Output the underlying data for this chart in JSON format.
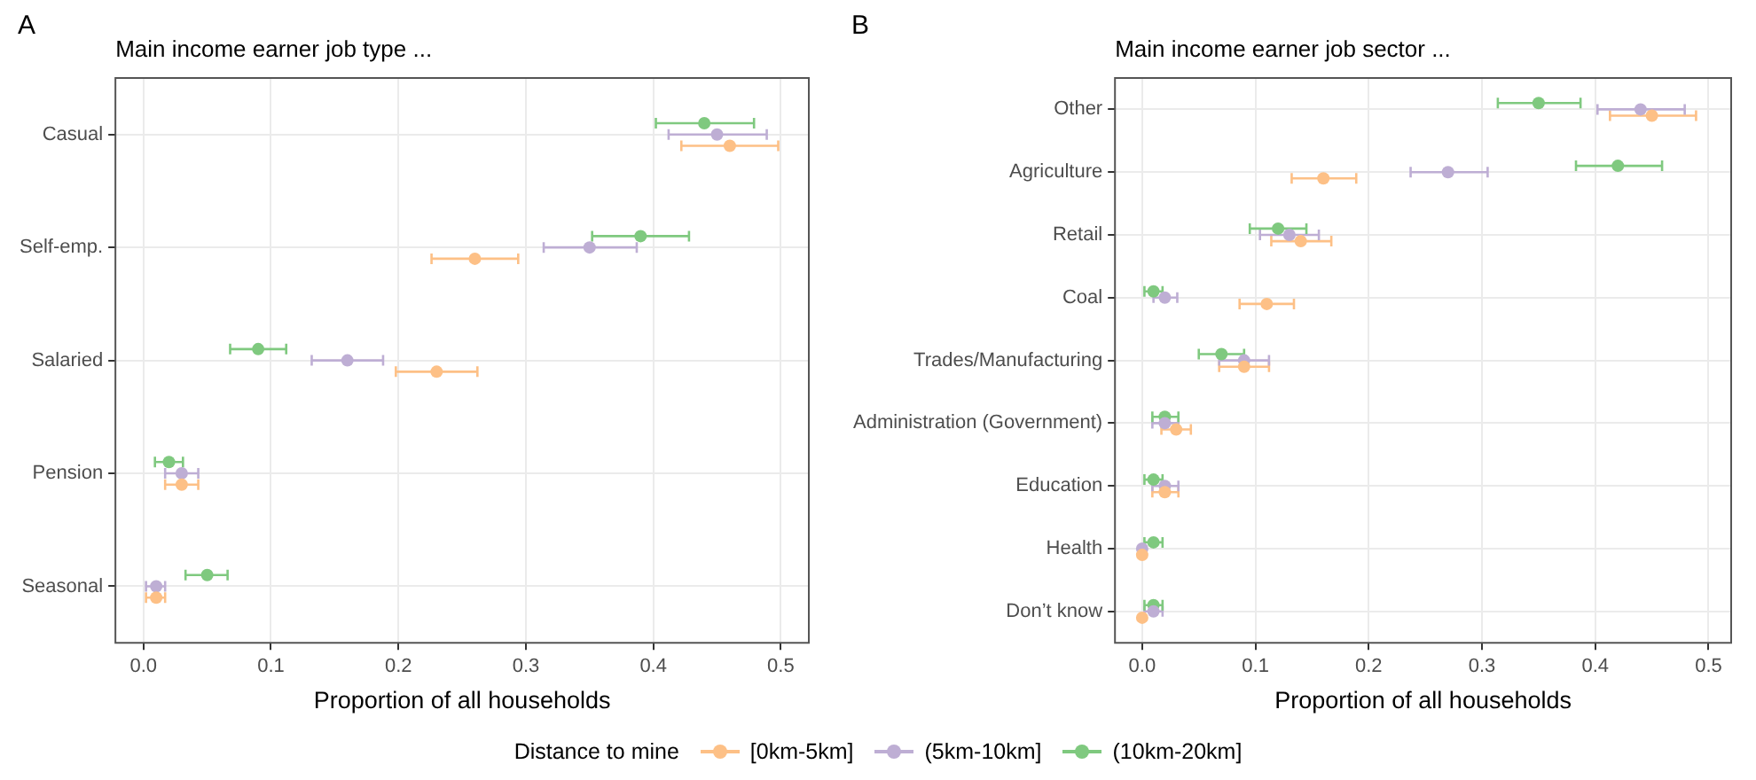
{
  "chart_data": [
    {
      "type": "scatter",
      "orientation": "horizontal",
      "annotations": [
        "A"
      ],
      "title": "Main income earner job type ...",
      "xlabel": "Proportion of all households",
      "categories": [
        "Casual",
        "Self-emp.",
        "Salaried",
        "Pension",
        "Seasonal"
      ],
      "xlim": [
        -0.022,
        0.522
      ],
      "xticks": [
        {
          "value": 0,
          "label": "0.0"
        },
        0.1,
        0.2,
        0.3,
        0.4,
        0.5
      ],
      "grid": true,
      "marker": "circle",
      "legend": "bottom",
      "legend_title": "Distance to mine",
      "series": [
        {
          "name": "[0km-5km]",
          "color": "#fdc086",
          "values": [
            0.46,
            0.26,
            0.23,
            0.03,
            0.01
          ],
          "errors": [
            [
              0.422,
              0.498
            ],
            [
              0.226,
              0.294
            ],
            [
              0.198,
              0.262
            ],
            [
              0.017,
              0.043
            ],
            [
              0.002,
              0.017
            ]
          ]
        },
        {
          "name": "(5km-10km]",
          "color": "#beaed4",
          "values": [
            0.45,
            0.35,
            0.16,
            0.03,
            0.01
          ],
          "errors": [
            [
              0.412,
              0.489
            ],
            [
              0.314,
              0.387
            ],
            [
              0.132,
              0.188
            ],
            [
              0.017,
              0.043
            ],
            [
              0.002,
              0.017
            ]
          ]
        },
        {
          "name": "(10km-20km]",
          "color": "#7fc97f",
          "values": [
            0.44,
            0.39,
            0.09,
            0.02,
            0.05
          ],
          "errors": [
            [
              0.402,
              0.479
            ],
            [
              0.352,
              0.428
            ],
            [
              0.068,
              0.112
            ],
            [
              0.009,
              0.031
            ],
            [
              0.033,
              0.066
            ]
          ]
        }
      ]
    },
    {
      "type": "scatter",
      "orientation": "horizontal",
      "annotations": [
        "B"
      ],
      "title": "Main income earner job sector ...",
      "xlabel": "Proportion of all households",
      "categories": [
        "Other",
        "Agriculture",
        "Retail",
        "Coal",
        "Trades/Manufacturing",
        "Administration (Government)",
        "Education",
        "Health",
        "Don’t know"
      ],
      "xlim": [
        -0.024,
        0.52
      ],
      "xticks": [
        {
          "value": 0,
          "label": "0.0"
        },
        0.1,
        0.2,
        0.3,
        0.4,
        0.5
      ],
      "grid": true,
      "marker": "circle",
      "series": [
        {
          "color": "#fdc086",
          "values": [
            0.45,
            0.16,
            0.14,
            0.11,
            0.09,
            0.03,
            0.02,
            0,
            0
          ],
          "errors": [
            [
              0.413,
              0.489
            ],
            [
              0.132,
              0.189
            ],
            [
              0.114,
              0.167
            ],
            [
              0.086,
              0.134
            ],
            [
              0.068,
              0.112
            ],
            [
              0.017,
              0.043
            ],
            [
              0.009,
              0.032
            ],
            null,
            null
          ]
        },
        {
          "color": "#beaed4",
          "values": [
            0.44,
            0.27,
            0.13,
            0.02,
            0.09,
            0.02,
            0.02,
            0,
            0.01
          ],
          "errors": [
            [
              0.402,
              0.479
            ],
            [
              0.237,
              0.305
            ],
            [
              0.104,
              0.156
            ],
            [
              0.01,
              0.031
            ],
            [
              0.068,
              0.112
            ],
            [
              0.009,
              0.032
            ],
            [
              0.009,
              0.032
            ],
            null,
            [
              0.002,
              0.018
            ]
          ]
        },
        {
          "color": "#7fc97f",
          "values": [
            0.35,
            0.42,
            0.12,
            0.01,
            0.07,
            0.02,
            0.01,
            0.01,
            0.01
          ],
          "errors": [
            [
              0.314,
              0.387
            ],
            [
              0.383,
              0.459
            ],
            [
              0.095,
              0.145
            ],
            [
              0.002,
              0.018
            ],
            [
              0.05,
              0.09
            ],
            [
              0.009,
              0.032
            ],
            [
              0.002,
              0.018
            ],
            [
              0.002,
              0.018
            ],
            [
              0.002,
              0.018
            ]
          ]
        }
      ]
    }
  ]
}
